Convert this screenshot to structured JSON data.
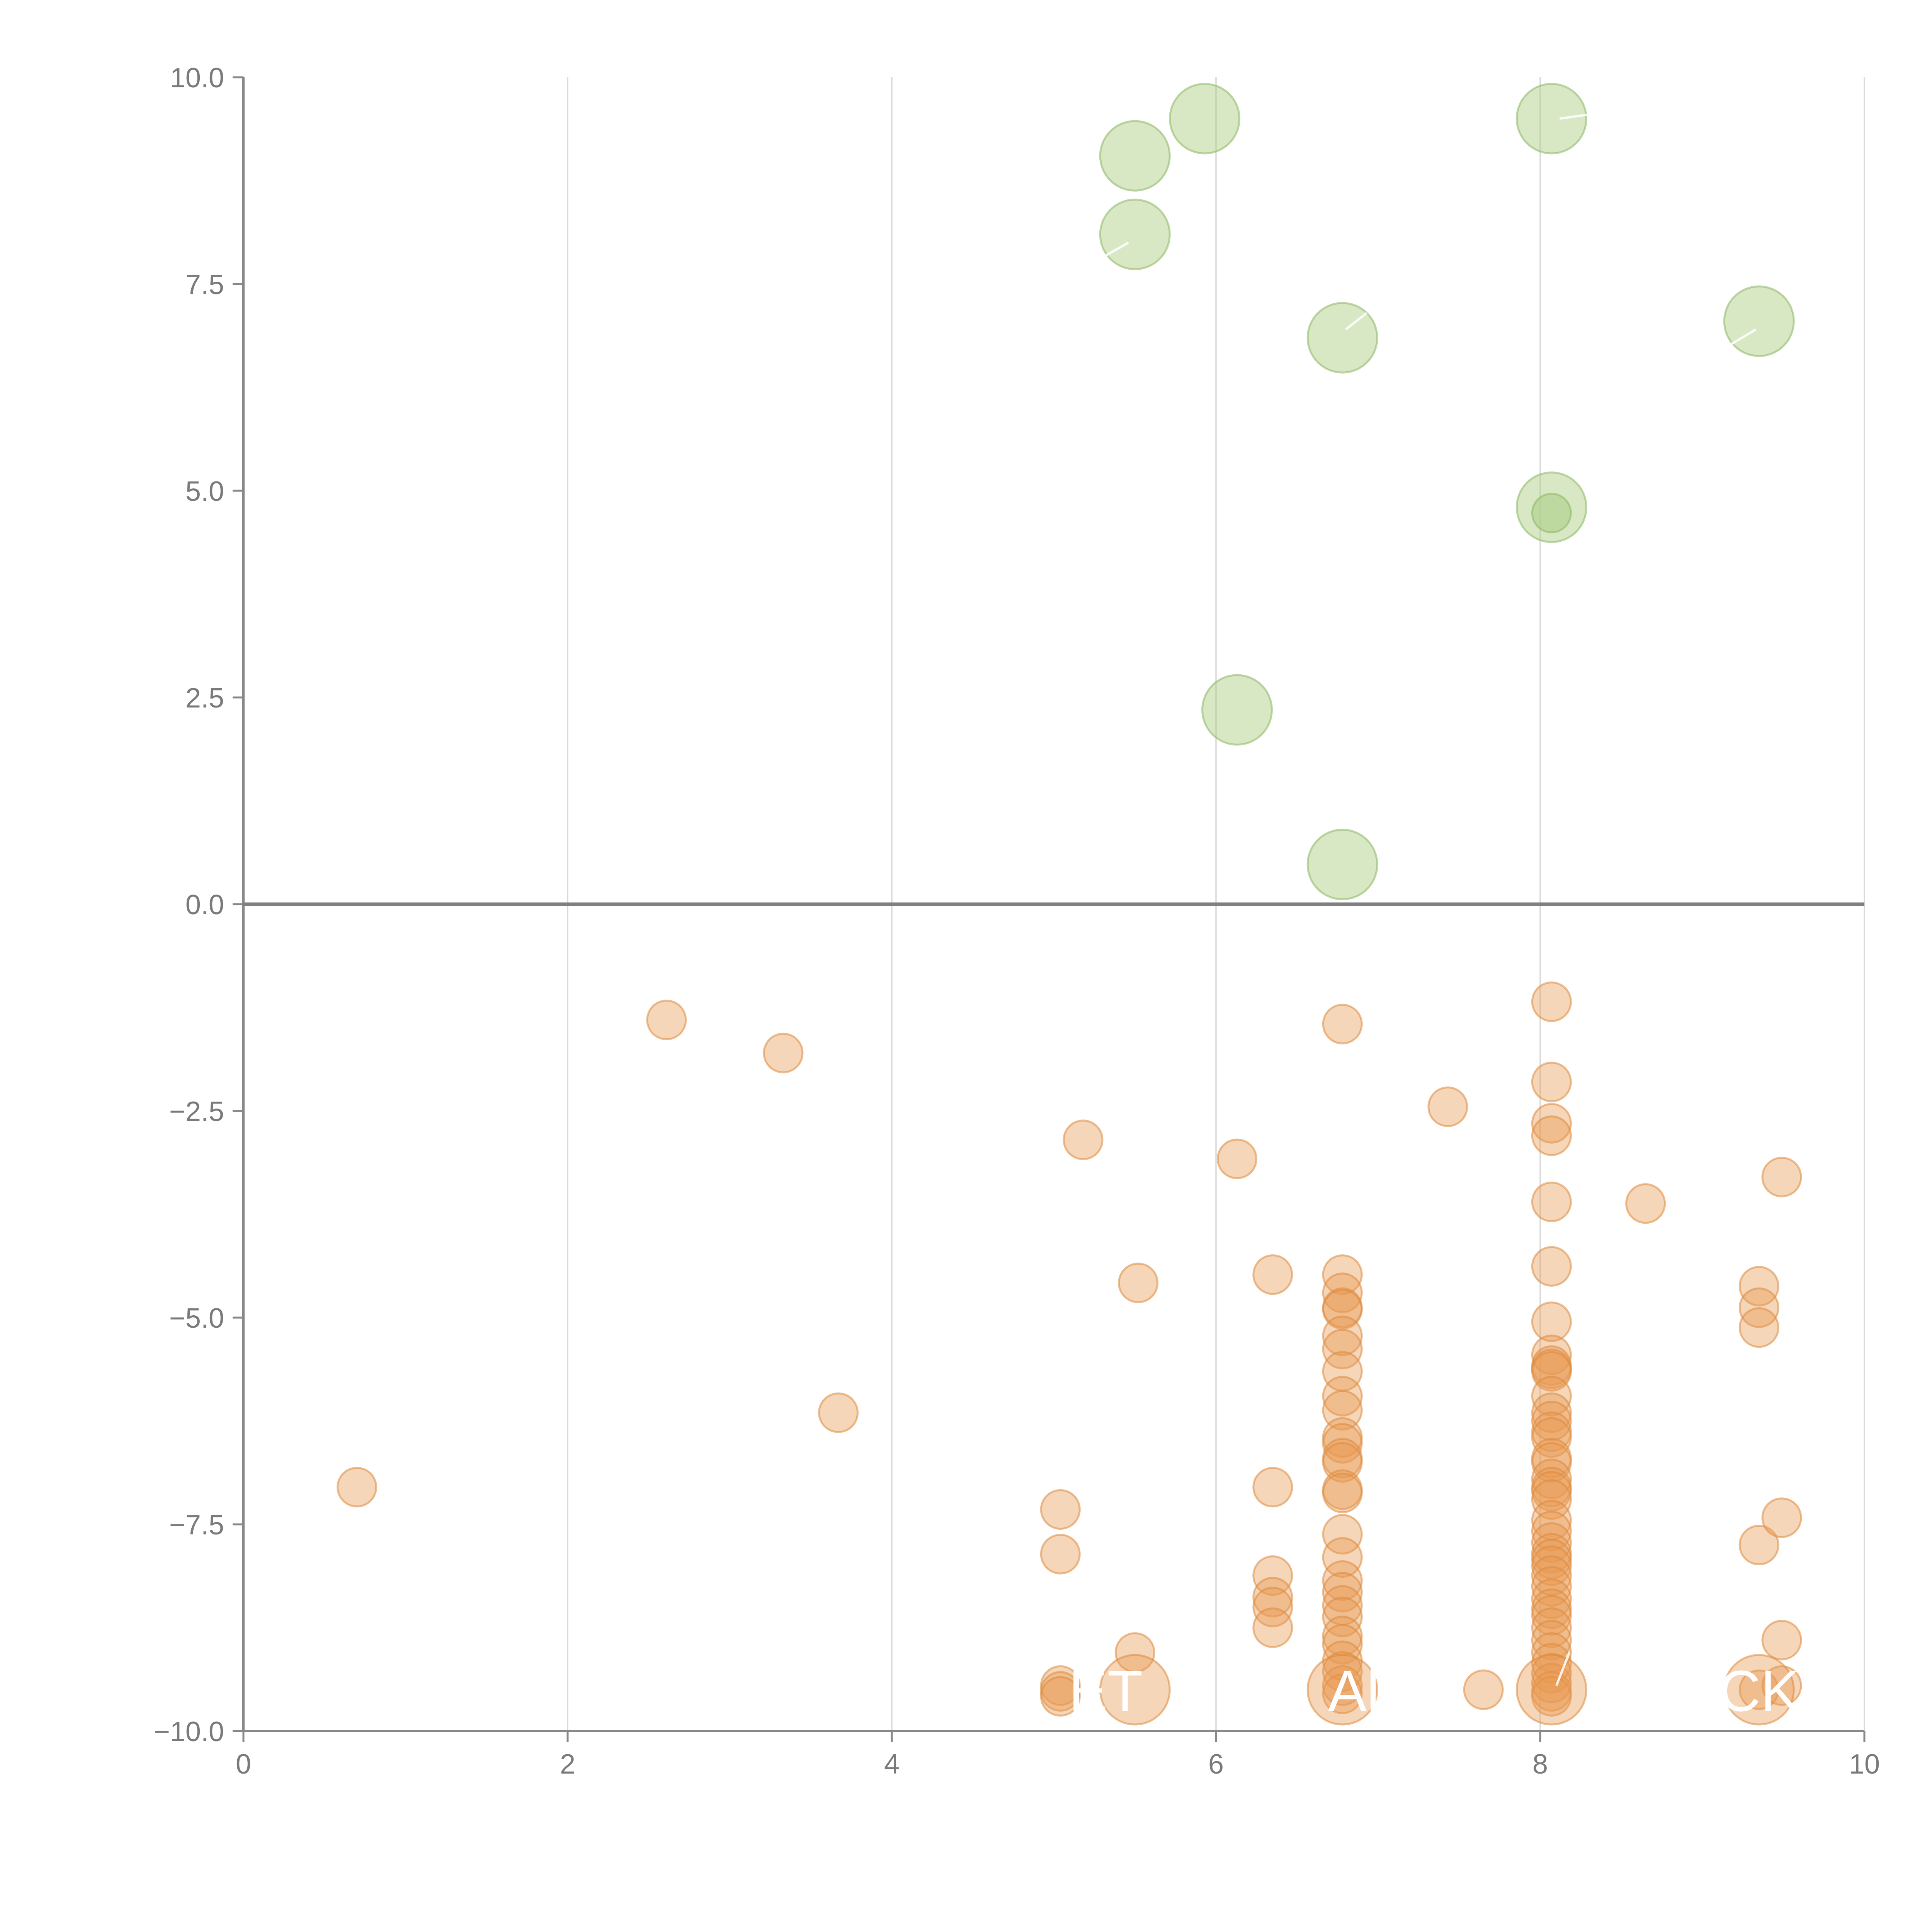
{
  "chart_data": {
    "type": "scatter",
    "title": "",
    "xlabel": "",
    "ylabel": "",
    "xlim": [
      0,
      10
    ],
    "ylim": [
      -10,
      10
    ],
    "grid": "vertical",
    "x_ticks": [
      "0",
      "2",
      "4",
      "6",
      "8",
      "10"
    ],
    "x_tick_values": [
      0,
      2,
      4,
      6,
      8,
      10
    ],
    "y_ticks": [
      "10.0",
      "7.5",
      "5.0",
      "2.5",
      "0.0",
      "−2.5",
      "−5.0",
      "−7.5",
      "−10.0"
    ],
    "y_tick_values": [
      10,
      7.5,
      5,
      2.5,
      0,
      -2.5,
      -5,
      -7.5,
      -10
    ],
    "reference_line_y": 0,
    "series": [
      {
        "name": "positive",
        "color": "#a9cc7f",
        "stroke": "#8db763",
        "size": "large",
        "points": [
          {
            "x": 5.5,
            "y": 9.05
          },
          {
            "x": 5.93,
            "y": 9.5
          },
          {
            "x": 5.5,
            "y": 8.1
          },
          {
            "x": 8.07,
            "y": 9.5
          },
          {
            "x": 6.78,
            "y": 6.85
          },
          {
            "x": 9.35,
            "y": 7.05
          },
          {
            "x": 8.07,
            "y": 4.8
          },
          {
            "x": 6.13,
            "y": 2.35
          },
          {
            "x": 6.78,
            "y": 0.48
          }
        ],
        "small_points": [
          {
            "x": 8.07,
            "y": 4.73
          }
        ]
      },
      {
        "name": "negative",
        "color": "#e8994f",
        "stroke": "#dd8a3e",
        "size": "small",
        "points": [
          {
            "x": 2.61,
            "y": -1.4
          },
          {
            "x": 3.33,
            "y": -1.8
          },
          {
            "x": 3.67,
            "y": -6.15
          },
          {
            "x": 0.7,
            "y": -7.05
          },
          {
            "x": 5.18,
            "y": -2.85
          },
          {
            "x": 5.52,
            "y": -4.58
          },
          {
            "x": 6.13,
            "y": -3.08
          },
          {
            "x": 5.04,
            "y": -7.32
          },
          {
            "x": 5.04,
            "y": -7.86
          },
          {
            "x": 5.04,
            "y": -9.45
          },
          {
            "x": 5.04,
            "y": -9.52
          },
          {
            "x": 5.04,
            "y": -9.58
          },
          {
            "x": 5.5,
            "y": -9.05
          },
          {
            "x": 6.35,
            "y": -4.48
          },
          {
            "x": 6.35,
            "y": -7.05
          },
          {
            "x": 6.35,
            "y": -8.12
          },
          {
            "x": 6.35,
            "y": -8.38
          },
          {
            "x": 6.35,
            "y": -8.5
          },
          {
            "x": 6.35,
            "y": -8.75
          },
          {
            "x": 6.78,
            "y": -1.45
          },
          {
            "x": 6.78,
            "y": -4.48
          },
          {
            "x": 6.78,
            "y": -4.7
          },
          {
            "x": 6.78,
            "y": -4.88
          },
          {
            "x": 6.78,
            "y": -4.9
          },
          {
            "x": 6.78,
            "y": -5.22
          },
          {
            "x": 6.78,
            "y": -5.38
          },
          {
            "x": 6.78,
            "y": -5.65
          },
          {
            "x": 6.78,
            "y": -5.95
          },
          {
            "x": 6.78,
            "y": -6.12
          },
          {
            "x": 6.78,
            "y": -6.45
          },
          {
            "x": 6.78,
            "y": -6.52
          },
          {
            "x": 6.78,
            "y": -6.7
          },
          {
            "x": 6.78,
            "y": -6.75
          },
          {
            "x": 6.78,
            "y": -7.08
          },
          {
            "x": 6.78,
            "y": -7.12
          },
          {
            "x": 6.78,
            "y": -7.62
          },
          {
            "x": 6.78,
            "y": -7.9
          },
          {
            "x": 6.78,
            "y": -8.18
          },
          {
            "x": 6.78,
            "y": -8.32
          },
          {
            "x": 6.78,
            "y": -8.48
          },
          {
            "x": 6.78,
            "y": -8.62
          },
          {
            "x": 6.78,
            "y": -8.85
          },
          {
            "x": 6.78,
            "y": -8.95
          },
          {
            "x": 6.78,
            "y": -9.15
          },
          {
            "x": 6.78,
            "y": -9.28
          },
          {
            "x": 6.78,
            "y": -9.45
          },
          {
            "x": 6.78,
            "y": -9.55
          },
          {
            "x": 7.43,
            "y": -2.45
          },
          {
            "x": 7.65,
            "y": -9.5
          },
          {
            "x": 8.65,
            "y": -3.62
          },
          {
            "x": 8.07,
            "y": -1.18
          },
          {
            "x": 8.07,
            "y": -2.15
          },
          {
            "x": 8.07,
            "y": -2.65
          },
          {
            "x": 8.07,
            "y": -2.8
          },
          {
            "x": 8.07,
            "y": -3.6
          },
          {
            "x": 8.07,
            "y": -4.38
          },
          {
            "x": 8.07,
            "y": -5.05
          },
          {
            "x": 8.07,
            "y": -5.45
          },
          {
            "x": 8.07,
            "y": -5.58
          },
          {
            "x": 8.07,
            "y": -5.62
          },
          {
            "x": 8.07,
            "y": -5.65
          },
          {
            "x": 8.07,
            "y": -5.95
          },
          {
            "x": 8.07,
            "y": -6.15
          },
          {
            "x": 8.07,
            "y": -6.25
          },
          {
            "x": 8.07,
            "y": -6.38
          },
          {
            "x": 8.07,
            "y": -6.45
          },
          {
            "x": 8.07,
            "y": -6.7
          },
          {
            "x": 8.07,
            "y": -6.75
          },
          {
            "x": 8.07,
            "y": -6.95
          },
          {
            "x": 8.07,
            "y": -7.05
          },
          {
            "x": 8.07,
            "y": -7.1
          },
          {
            "x": 8.07,
            "y": -7.2
          },
          {
            "x": 8.07,
            "y": -7.45
          },
          {
            "x": 8.07,
            "y": -7.58
          },
          {
            "x": 8.07,
            "y": -7.72
          },
          {
            "x": 8.07,
            "y": -7.85
          },
          {
            "x": 8.07,
            "y": -7.92
          },
          {
            "x": 8.07,
            "y": -8.0
          },
          {
            "x": 8.07,
            "y": -8.12
          },
          {
            "x": 8.07,
            "y": -8.25
          },
          {
            "x": 8.07,
            "y": -8.4
          },
          {
            "x": 8.07,
            "y": -8.52
          },
          {
            "x": 8.07,
            "y": -8.6
          },
          {
            "x": 8.07,
            "y": -8.75
          },
          {
            "x": 8.07,
            "y": -8.9
          },
          {
            "x": 8.07,
            "y": -9.05
          },
          {
            "x": 8.07,
            "y": -9.18
          },
          {
            "x": 8.07,
            "y": -9.3
          },
          {
            "x": 8.07,
            "y": -9.42
          },
          {
            "x": 8.07,
            "y": -9.52
          },
          {
            "x": 8.07,
            "y": -9.58
          },
          {
            "x": 9.35,
            "y": -4.62
          },
          {
            "x": 9.35,
            "y": -4.88
          },
          {
            "x": 9.35,
            "y": -5.12
          },
          {
            "x": 9.35,
            "y": -7.75
          },
          {
            "x": 9.35,
            "y": -9.5
          },
          {
            "x": 9.49,
            "y": -3.3
          },
          {
            "x": 9.49,
            "y": -7.42
          },
          {
            "x": 9.49,
            "y": -8.9
          },
          {
            "x": 9.49,
            "y": -9.45
          }
        ],
        "large_points": [
          {
            "x": 5.5,
            "y": -9.5
          },
          {
            "x": 6.78,
            "y": -9.5
          },
          {
            "x": 8.07,
            "y": -9.5
          },
          {
            "x": 9.35,
            "y": -9.5
          }
        ]
      }
    ],
    "overlay_labels": [
      {
        "text": "ET",
        "x": 5.32,
        "y": -9.5
      },
      {
        "text": "Al",
        "x": 6.85,
        "y": -9.5
      },
      {
        "text": "CK",
        "x": 9.35,
        "y": -9.5
      }
    ],
    "connector_lines": [
      {
        "x1": 5.53,
        "y1": 9.5,
        "x2": 5.7,
        "y2": 9.52
      },
      {
        "x1": 5.28,
        "y1": 7.8,
        "x2": 5.46,
        "y2": 8.0
      },
      {
        "x1": 8.12,
        "y1": 9.5,
        "x2": 8.3,
        "y2": 9.55
      },
      {
        "x1": 6.8,
        "y1": 6.95,
        "x2": 6.93,
        "y2": 7.15
      },
      {
        "x1": 9.16,
        "y1": 6.75,
        "x2": 9.33,
        "y2": 6.95
      },
      {
        "x1": 8.1,
        "y1": -9.45,
        "x2": 8.18,
        "y2": -9.05
      }
    ]
  }
}
